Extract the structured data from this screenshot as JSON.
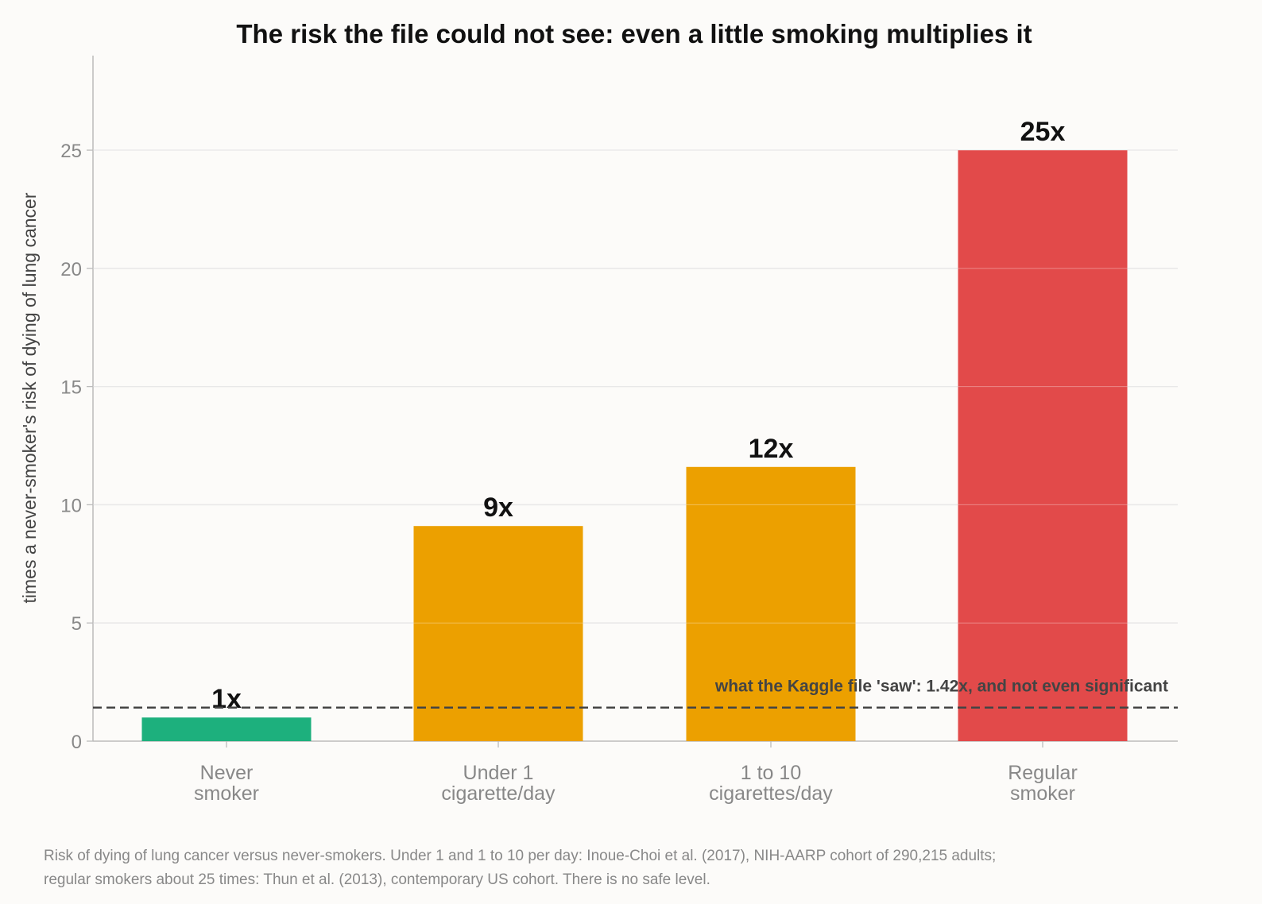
{
  "chart_data": {
    "type": "bar",
    "title": "The risk the file could not see: even a little smoking multiplies it",
    "xlabel": "",
    "ylabel": "times a never-smoker's risk of dying of lung cancer",
    "ylim": [
      0,
      29
    ],
    "yticks": [
      0,
      5,
      10,
      15,
      20,
      25
    ],
    "grid": "horizontal",
    "categories": [
      [
        "Never",
        "smoker"
      ],
      [
        "Under 1",
        "cigarette/day"
      ],
      [
        "1 to 10",
        "cigarettes/day"
      ],
      [
        "Regular",
        "smoker"
      ]
    ],
    "values": [
      1,
      9.1,
      11.6,
      25
    ],
    "value_labels": [
      "1x",
      "9x",
      "12x",
      "25x"
    ],
    "bar_colors": [
      "#1db07d",
      "#eca000",
      "#eca000",
      "#e24a4a"
    ],
    "reference_line": {
      "value": 1.42,
      "label": "what the Kaggle file 'saw': 1.42x, and not even significant",
      "style": "dashed",
      "color": "#444444"
    },
    "footnote": [
      "Risk of dying of lung cancer versus never-smokers. Under 1 and 1 to 10 per day: Inoue-Choi et al. (2017), NIH-AARP cohort of 290,215 adults;",
      "regular smokers about 25 times: Thun et al. (2013), contemporary US cohort. There is no safe level."
    ]
  }
}
